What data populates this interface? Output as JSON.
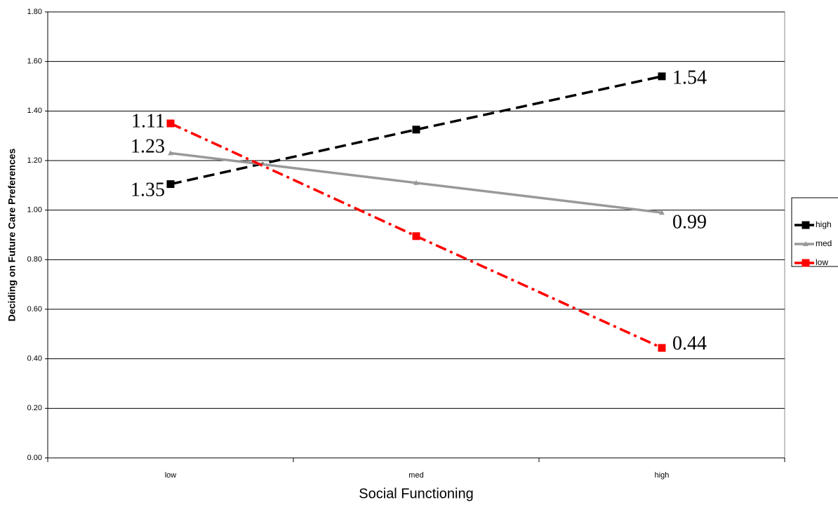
{
  "chart_data": {
    "type": "line",
    "x_label": "Social Functioning",
    "y_label": "Deciding on Future Care Preferences",
    "categories": [
      "low",
      "med",
      "high"
    ],
    "series": [
      {
        "name": "high",
        "color": "#000000",
        "dash": "dashed",
        "marker": "square",
        "values": [
          1.105,
          1.325,
          1.54
        ]
      },
      {
        "name": "med",
        "color": "#999999",
        "dash": "solid",
        "marker": "triangle",
        "values": [
          1.23,
          1.11,
          0.99
        ]
      },
      {
        "name": "low",
        "color": "#ff0000",
        "dash": "dashdot",
        "marker": "square",
        "values": [
          1.35,
          0.895,
          0.444
        ]
      }
    ],
    "annotations": [
      "1.11",
      "1.23",
      "1.35",
      "1.54",
      "0.99",
      "0.44"
    ],
    "ylim": [
      0,
      1.8
    ],
    "yticks": [
      {
        "value": 0,
        "label": "0.00"
      },
      {
        "value": 0.2,
        "label": "0.20"
      },
      {
        "value": 0.4,
        "label": "0.40"
      },
      {
        "value": 0.6,
        "label": "0.60"
      },
      {
        "value": 0.8,
        "label": "0.80"
      },
      {
        "value": 1,
        "label": "1.00"
      },
      {
        "value": 1.2,
        "label": "1.20"
      },
      {
        "value": 1.4,
        "label": "1.40"
      },
      {
        "value": 1.6,
        "label": "1.60"
      },
      {
        "value": 1.8,
        "label": "1.80"
      }
    ],
    "grid": true,
    "legend": "right"
  }
}
